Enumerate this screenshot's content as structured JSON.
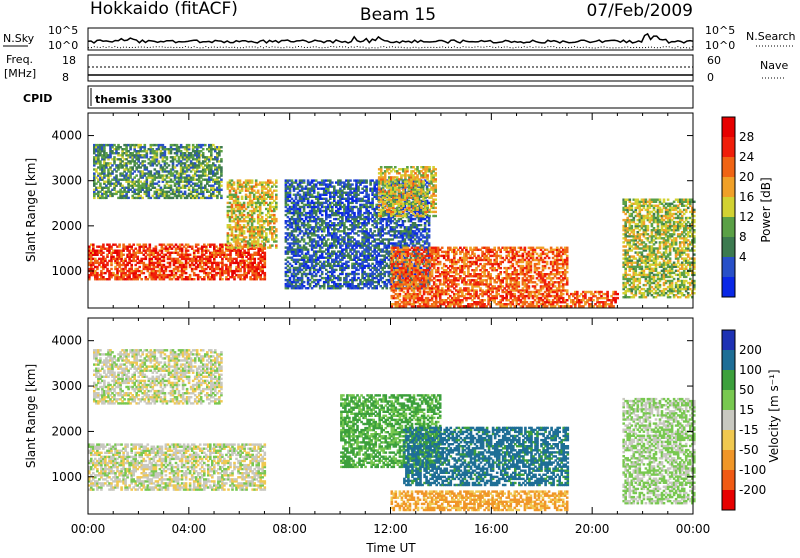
{
  "header": {
    "station": "Hokkaido (fitACF)",
    "beam": "Beam 15",
    "date": "07/Feb/2009"
  },
  "nsky_panel": {
    "left_label": "N.Sky",
    "right_label": "N.Search",
    "left_ticks": [
      "10^5",
      "10^0"
    ],
    "right_ticks": [
      "10^5",
      "10^0"
    ]
  },
  "freq_panel": {
    "left_label_1": "Freq.",
    "left_label_2": "[MHz]",
    "right_label": "Nave",
    "left_ticks": [
      "18",
      "8"
    ],
    "right_ticks": [
      "60",
      "0"
    ]
  },
  "cpid_panel": {
    "label": "CPID",
    "program": "themis 3300"
  },
  "colors": {
    "power_scale": [
      "#0a28e6",
      "#2850c8",
      "#3c7a50",
      "#5aa046",
      "#d2d232",
      "#f0a028",
      "#f06414",
      "#f01e0a",
      "#e60000"
    ],
    "velocity_scale": [
      "#e60000",
      "#f05a14",
      "#f09628",
      "#f0c850",
      "#c8c8c0",
      "#78c850",
      "#3ca03c",
      "#1e6e96",
      "#1e32b4"
    ]
  },
  "chart_data": [
    {
      "type": "heatmap",
      "name": "power",
      "ylabel": "Slant Range [km]",
      "ylim": [
        180,
        4500
      ],
      "yticks": [
        "1000",
        "2000",
        "3000",
        "4000"
      ],
      "xlim": [
        "00:00",
        "24:00"
      ],
      "colorbar_label": "Power [dB]",
      "colorbar_ticks": [
        "4",
        "8",
        "12",
        "16",
        "20",
        "24",
        "28"
      ],
      "colorbar_range": [
        0,
        30
      ],
      "regions": [
        {
          "t0": 0.0,
          "t1": 7.0,
          "r0": 800,
          "r1": 1600,
          "level": 24
        },
        {
          "t0": 0.2,
          "t1": 5.3,
          "r0": 2600,
          "r1": 3800,
          "level": 10
        },
        {
          "t0": 5.5,
          "t1": 7.5,
          "r0": 1500,
          "r1": 3000,
          "level": 16
        },
        {
          "t0": 7.8,
          "t1": 13.5,
          "r0": 600,
          "r1": 3000,
          "level": 6
        },
        {
          "t0": 11.5,
          "t1": 13.8,
          "r0": 2200,
          "r1": 3300,
          "level": 16
        },
        {
          "t0": 12.0,
          "t1": 19.0,
          "r0": 550,
          "r1": 1500,
          "level": 22
        },
        {
          "t0": 12.0,
          "t1": 21.0,
          "r0": 200,
          "r1": 550,
          "level": 22
        },
        {
          "t0": 21.2,
          "t1": 24.0,
          "r0": 400,
          "r1": 2600,
          "level": 14
        }
      ]
    },
    {
      "type": "heatmap",
      "name": "velocity",
      "ylabel": "Slant Range [km]",
      "ylim": [
        180,
        4500
      ],
      "yticks": [
        "1000",
        "2000",
        "3000",
        "4000"
      ],
      "xlabel": "Time UT",
      "xticks": [
        "00:00",
        "04:00",
        "08:00",
        "12:00",
        "16:00",
        "20:00",
        "00:00"
      ],
      "xlim": [
        "00:00",
        "24:00"
      ],
      "colorbar_label": "Velocity [m s⁻¹]",
      "colorbar_ticks": [
        "200",
        "100",
        "50",
        "15",
        "-15",
        "-50",
        "-100",
        "-200"
      ],
      "colorbar_range": [
        -250,
        250
      ],
      "regions": [
        {
          "t0": 0.0,
          "t1": 7.0,
          "r0": 700,
          "r1": 1700,
          "level": 0
        },
        {
          "t0": 0.2,
          "t1": 5.3,
          "r0": 2600,
          "r1": 3800,
          "level": 0
        },
        {
          "t0": 10.0,
          "t1": 14.0,
          "r0": 1200,
          "r1": 2800,
          "level": 60
        },
        {
          "t0": 12.5,
          "t1": 19.0,
          "r0": 800,
          "r1": 2100,
          "level": 120
        },
        {
          "t0": 12.0,
          "t1": 19.0,
          "r0": 250,
          "r1": 700,
          "level": -60
        },
        {
          "t0": 21.2,
          "t1": 24.0,
          "r0": 400,
          "r1": 2700,
          "level": 20
        }
      ]
    }
  ]
}
